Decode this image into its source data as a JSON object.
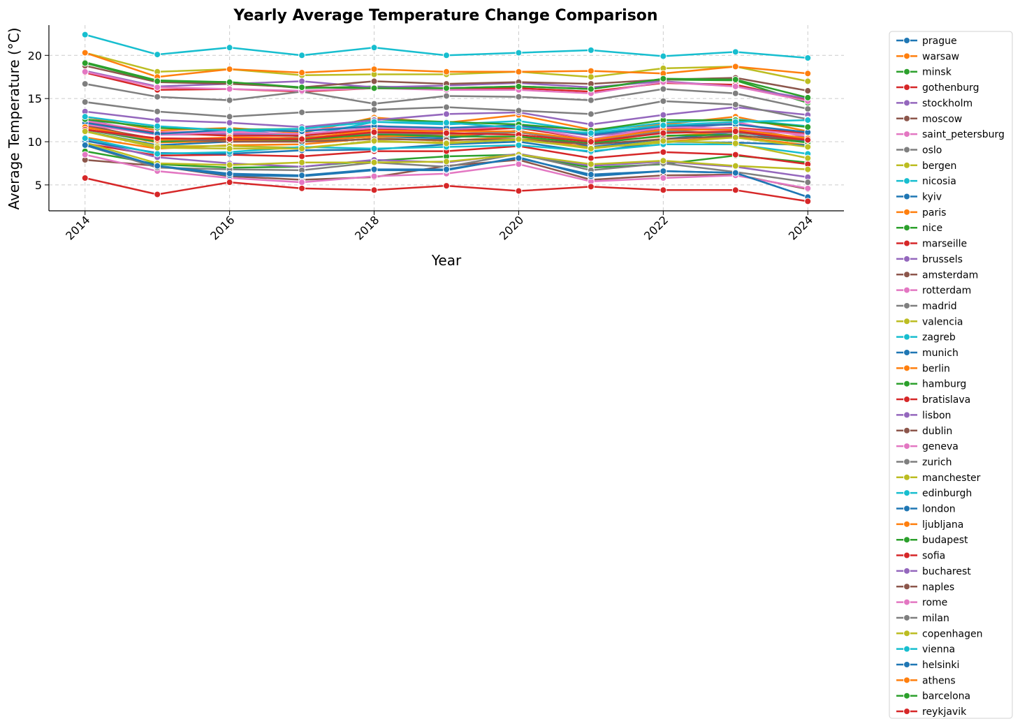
{
  "chart_data": {
    "type": "line",
    "title": "Yearly Average Temperature Change Comparison",
    "xlabel": "Year",
    "ylabel": "Average Temperature (°C)",
    "x": [
      2014,
      2015,
      2016,
      2017,
      2018,
      2019,
      2020,
      2021,
      2022,
      2023,
      2024
    ],
    "x_ticks": [
      "2014",
      "2016",
      "2018",
      "2020",
      "2022",
      "2024"
    ],
    "y_ticks": [
      "5",
      "10",
      "15",
      "20"
    ],
    "xlim": [
      2013.5,
      2024.5
    ],
    "ylim": [
      2.0,
      23.5
    ],
    "grid": true,
    "legend_position": "outside-right",
    "series": [
      {
        "name": "prague",
        "color": "#1f77b4",
        "values": [
          11.2,
          9.6,
          10.0,
          10.1,
          10.6,
          10.4,
          11.3,
          9.4,
          10.3,
          11.1,
          10.0
        ]
      },
      {
        "name": "warsaw",
        "color": "#ff7f0e",
        "values": [
          10.5,
          9.2,
          9.6,
          9.7,
          10.4,
          10.1,
          10.6,
          9.3,
          10.0,
          10.6,
          9.6
        ]
      },
      {
        "name": "minsk",
        "color": "#2ca02c",
        "values": [
          8.9,
          7.4,
          7.0,
          7.1,
          7.8,
          8.3,
          8.5,
          7.0,
          7.4,
          8.4,
          7.6
        ]
      },
      {
        "name": "gothenburg",
        "color": "#d62728",
        "values": [
          9.8,
          8.4,
          8.5,
          8.3,
          8.9,
          8.9,
          9.5,
          8.1,
          8.8,
          8.5,
          7.4
        ]
      },
      {
        "name": "stockholm",
        "color": "#9467bd",
        "values": [
          10.2,
          8.2,
          7.5,
          7.1,
          7.9,
          7.6,
          8.6,
          7.2,
          7.7,
          7.1,
          5.9
        ]
      },
      {
        "name": "moscow",
        "color": "#8c564b",
        "values": [
          7.9,
          7.2,
          6.0,
          5.6,
          5.9,
          7.2,
          7.9,
          5.6,
          6.1,
          6.2,
          4.5
        ]
      },
      {
        "name": "saint_petersburg",
        "color": "#e377c2",
        "values": [
          8.5,
          6.6,
          5.8,
          5.3,
          6.0,
          6.3,
          7.4,
          5.4,
          5.8,
          6.1,
          4.6
        ]
      },
      {
        "name": "oslo",
        "color": "#7f7f7f",
        "values": [
          9.6,
          7.0,
          6.8,
          6.7,
          7.6,
          7.1,
          8.6,
          6.7,
          7.5,
          6.5,
          5.3
        ]
      },
      {
        "name": "bergen",
        "color": "#bcbd22",
        "values": [
          9.9,
          7.5,
          7.3,
          7.6,
          7.6,
          7.7,
          8.5,
          7.4,
          7.8,
          7.2,
          6.8
        ]
      },
      {
        "name": "nicosia",
        "color": "#17becf",
        "values": [
          22.4,
          20.1,
          20.9,
          20.0,
          20.9,
          20.0,
          20.3,
          20.6,
          19.9,
          20.4,
          19.7
        ]
      },
      {
        "name": "kyiv",
        "color": "#1f77b4",
        "values": [
          9.7,
          7.2,
          6.1,
          6.0,
          6.7,
          6.7,
          8.2,
          6.0,
          6.6,
          6.4,
          3.6
        ]
      },
      {
        "name": "paris",
        "color": "#ff7f0e",
        "values": [
          12.9,
          11.3,
          11.6,
          11.0,
          12.8,
          12.2,
          13.1,
          11.4,
          12.0,
          12.9,
          11.2
        ]
      },
      {
        "name": "nice",
        "color": "#2ca02c",
        "values": [
          19.2,
          17.1,
          16.9,
          16.2,
          16.4,
          16.2,
          16.4,
          16.1,
          17.2,
          17.1,
          14.5
        ]
      },
      {
        "name": "marseille",
        "color": "#d62728",
        "values": [
          18.0,
          16.0,
          16.1,
          15.8,
          16.2,
          16.2,
          16.2,
          15.8,
          16.8,
          16.6,
          14.8
        ]
      },
      {
        "name": "brussels",
        "color": "#9467bd",
        "values": [
          12.6,
          10.8,
          10.9,
          10.8,
          11.5,
          11.4,
          11.8,
          10.7,
          11.4,
          12.1,
          10.8
        ]
      },
      {
        "name": "amsterdam",
        "color": "#8c564b",
        "values": [
          12.0,
          10.1,
          10.2,
          10.5,
          10.7,
          10.9,
          11.1,
          10.0,
          11.2,
          11.6,
          10.3
        ]
      },
      {
        "name": "rotterdam",
        "color": "#e377c2",
        "values": [
          12.4,
          11.1,
          11.2,
          11.3,
          11.9,
          11.1,
          12.0,
          10.9,
          11.6,
          12.3,
          10.5
        ]
      },
      {
        "name": "madrid",
        "color": "#7f7f7f",
        "values": [
          16.7,
          15.2,
          14.8,
          15.8,
          14.4,
          15.3,
          15.2,
          14.8,
          16.1,
          15.6,
          13.8
        ]
      },
      {
        "name": "valencia",
        "color": "#bcbd22",
        "values": [
          20.3,
          18.1,
          18.4,
          17.7,
          17.8,
          17.8,
          18.1,
          17.5,
          18.5,
          18.7,
          17.0
        ]
      },
      {
        "name": "zagreb",
        "color": "#17becf",
        "values": [
          12.1,
          10.8,
          11.5,
          10.6,
          12.3,
          12.0,
          12.4,
          11.2,
          12.2,
          12.6,
          11.8
        ]
      },
      {
        "name": "munich",
        "color": "#1f77b4",
        "values": [
          10.1,
          8.7,
          8.6,
          9.0,
          9.1,
          9.7,
          10.0,
          8.8,
          10.0,
          9.9,
          9.6
        ]
      },
      {
        "name": "berlin",
        "color": "#ff7f0e",
        "values": [
          11.5,
          9.9,
          10.1,
          10.1,
          10.6,
          10.7,
          11.1,
          10.0,
          10.6,
          11.2,
          10.2
        ]
      },
      {
        "name": "hamburg",
        "color": "#2ca02c",
        "values": [
          11.4,
          10.0,
          10.3,
          10.2,
          10.9,
          10.6,
          10.6,
          9.8,
          10.7,
          10.8,
          9.9
        ]
      },
      {
        "name": "bratislava",
        "color": "#d62728",
        "values": [
          12.2,
          11.0,
          10.7,
          10.7,
          11.4,
          11.2,
          11.6,
          10.3,
          11.4,
          11.6,
          11.0
        ]
      },
      {
        "name": "lisbon",
        "color": "#9467bd",
        "values": [
          18.2,
          16.4,
          16.7,
          17.0,
          16.3,
          16.5,
          16.8,
          16.3,
          17.0,
          16.4,
          15.0
        ]
      },
      {
        "name": "dublin",
        "color": "#8c564b",
        "values": [
          11.8,
          10.3,
          10.0,
          10.0,
          10.3,
          10.2,
          10.3,
          9.7,
          10.3,
          10.7,
          10.2
        ]
      },
      {
        "name": "geneva",
        "color": "#e377c2",
        "values": [
          12.0,
          10.8,
          11.1,
          10.9,
          11.6,
          11.5,
          11.8,
          10.3,
          11.7,
          11.5,
          10.8
        ]
      },
      {
        "name": "zurich",
        "color": "#7f7f7f",
        "values": [
          11.4,
          10.2,
          10.3,
          10.5,
          11.0,
          10.9,
          11.1,
          10.0,
          11.2,
          11.0,
          10.5
        ]
      },
      {
        "name": "manchester",
        "color": "#bcbd22",
        "values": [
          11.2,
          9.5,
          9.5,
          9.3,
          10.0,
          9.9,
          10.2,
          9.3,
          9.9,
          10.5,
          9.4
        ]
      },
      {
        "name": "edinburgh",
        "color": "#17becf",
        "values": [
          10.4,
          8.6,
          8.8,
          9.4,
          9.2,
          9.4,
          9.6,
          8.9,
          9.7,
          9.7,
          8.6
        ]
      },
      {
        "name": "london",
        "color": "#1f77b4",
        "values": [
          12.2,
          10.9,
          11.4,
          11.2,
          11.8,
          11.6,
          11.9,
          10.8,
          11.8,
          12.0,
          11.1
        ]
      },
      {
        "name": "ljubljana",
        "color": "#ff7f0e",
        "values": [
          11.7,
          10.2,
          10.5,
          10.4,
          11.3,
          11.2,
          11.2,
          10.2,
          11.4,
          11.4,
          10.4
        ]
      },
      {
        "name": "budapest",
        "color": "#2ca02c",
        "values": [
          12.6,
          11.6,
          11.4,
          11.5,
          12.6,
          12.3,
          12.0,
          11.3,
          12.5,
          12.5,
          11.7
        ]
      },
      {
        "name": "sofia",
        "color": "#d62728",
        "values": [
          11.4,
          10.4,
          10.3,
          10.3,
          11.1,
          11.0,
          10.8,
          10.0,
          11.0,
          11.2,
          10.2
        ]
      },
      {
        "name": "bucharest",
        "color": "#9467bd",
        "values": [
          13.5,
          12.5,
          12.2,
          11.7,
          12.5,
          13.2,
          13.4,
          12.0,
          13.1,
          14.0,
          13.1
        ]
      },
      {
        "name": "naples",
        "color": "#8c564b",
        "values": [
          18.8,
          16.9,
          16.7,
          16.3,
          17.0,
          16.7,
          16.9,
          16.7,
          17.2,
          17.4,
          15.9
        ]
      },
      {
        "name": "rome",
        "color": "#e377c2",
        "values": [
          18.1,
          16.3,
          16.1,
          15.9,
          16.2,
          16.0,
          16.0,
          15.6,
          16.9,
          16.4,
          14.7
        ]
      },
      {
        "name": "milan",
        "color": "#7f7f7f",
        "values": [
          14.6,
          13.5,
          12.9,
          13.4,
          13.7,
          14.0,
          13.6,
          13.2,
          14.7,
          14.3,
          12.6
        ]
      },
      {
        "name": "copenhagen",
        "color": "#bcbd22",
        "values": [
          11.2,
          9.3,
          9.2,
          9.2,
          10.1,
          9.8,
          10.3,
          9.2,
          10.1,
          9.8,
          8.1
        ]
      },
      {
        "name": "vienna",
        "color": "#17becf",
        "values": [
          12.9,
          11.8,
          11.3,
          11.5,
          12.3,
          12.2,
          11.6,
          11.0,
          11.9,
          12.3,
          12.5
        ]
      },
      {
        "name": "helsinki",
        "color": "#1f77b4",
        "values": [
          9.6,
          7.2,
          6.3,
          6.1,
          6.8,
          6.8,
          8.1,
          6.2,
          6.6,
          6.4,
          3.6
        ]
      },
      {
        "name": "athens",
        "color": "#ff7f0e",
        "values": [
          20.3,
          17.5,
          18.4,
          18.0,
          18.4,
          18.1,
          18.1,
          18.2,
          17.9,
          18.7,
          17.9
        ]
      },
      {
        "name": "barcelona",
        "color": "#2ca02c",
        "values": [
          19.1,
          17.0,
          16.9,
          16.3,
          16.2,
          16.2,
          16.4,
          16.1,
          17.3,
          17.2,
          15.1
        ]
      },
      {
        "name": "reykjavik",
        "color": "#d62728",
        "values": [
          5.8,
          3.9,
          5.3,
          4.6,
          4.4,
          4.9,
          4.3,
          4.8,
          4.4,
          4.4,
          3.1
        ]
      }
    ]
  }
}
